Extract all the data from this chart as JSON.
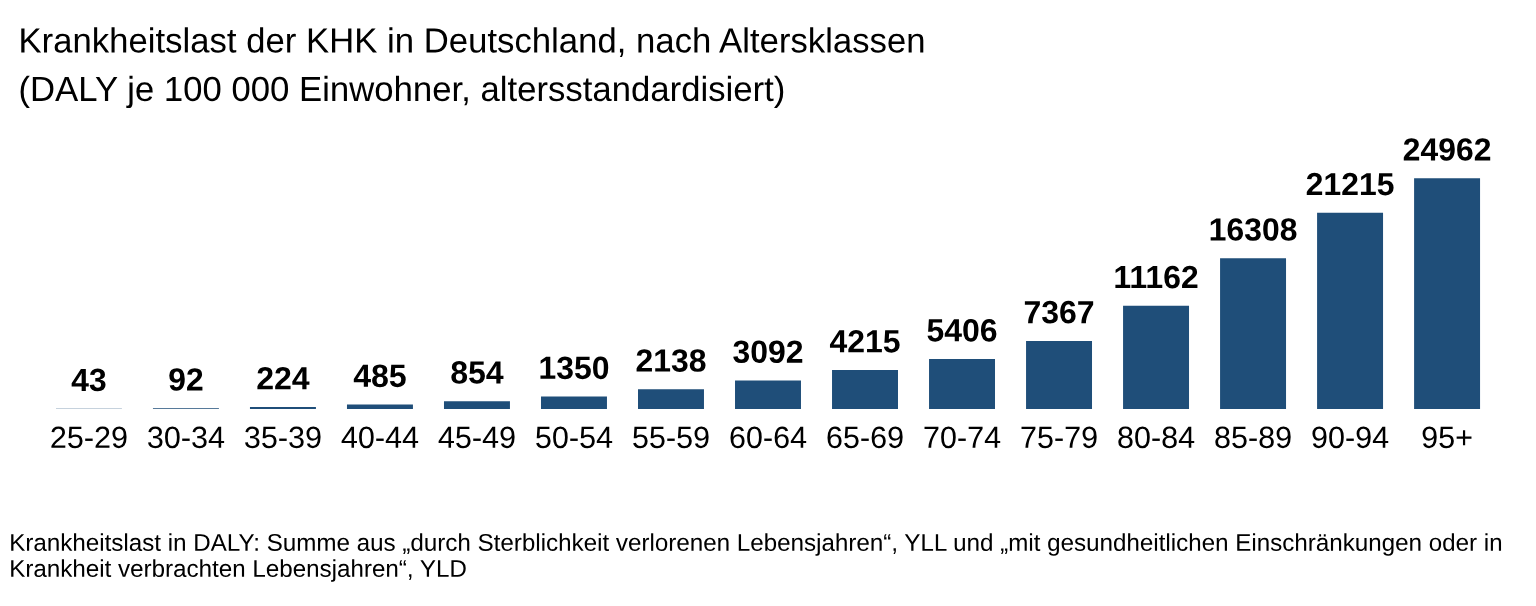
{
  "chart_data": {
    "type": "bar",
    "title": "Krankheitslast der KHK in Deutschland, nach Altersklassen",
    "subtitle": "(DALY je 100 000 Einwohner, altersstandardisiert)",
    "categories": [
      "25-29",
      "30-34",
      "35-39",
      "40-44",
      "45-49",
      "50-54",
      "55-59",
      "60-64",
      "65-69",
      "70-74",
      "75-79",
      "80-84",
      "85-89",
      "90-94",
      "95+"
    ],
    "values": [
      43,
      92,
      224,
      485,
      854,
      1350,
      2138,
      3092,
      4215,
      5406,
      7367,
      11162,
      16308,
      21215,
      24962
    ],
    "color": "#1f4e79",
    "data_labels": true,
    "grid": false,
    "legend": false,
    "annotations": [
      "Krankheitslast in DALY: Summe aus „durch Sterblichkeit verlorenen Lebensjahren“, YLL und „mit gesundheitlichen Einschränkungen oder in Krankheit verbrachten Lebensjahren“, YLD"
    ]
  }
}
